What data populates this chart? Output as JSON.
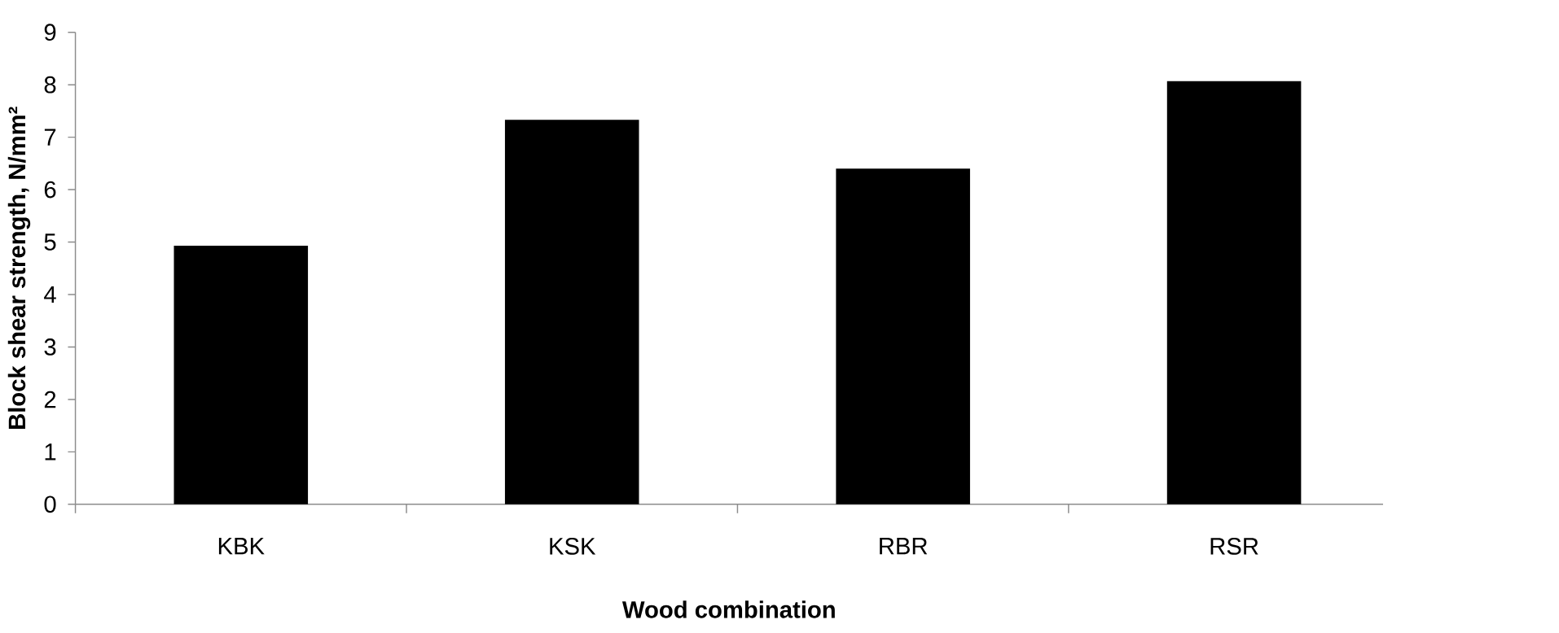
{
  "chart_data": {
    "type": "bar",
    "xlabel": "Wood combination",
    "ylabel": "Block shear strength, N/mm²",
    "categories": [
      "KBK",
      "KSK",
      "RBR",
      "RSR"
    ],
    "values": [
      4.93,
      7.33,
      6.4,
      8.07
    ],
    "color": "#000000",
    "ylim": [
      0,
      9
    ],
    "yticks": [
      0,
      1,
      2,
      3,
      4,
      5,
      6,
      7,
      8,
      9
    ],
    "grid": false
  }
}
